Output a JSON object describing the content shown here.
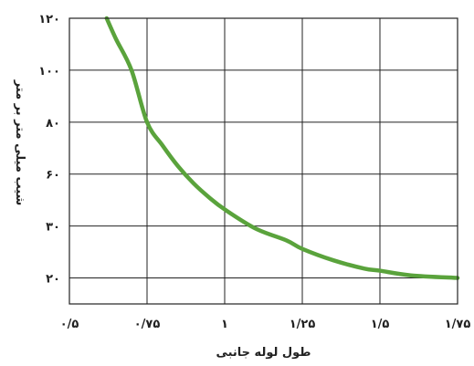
{
  "chart_data": {
    "type": "line",
    "title": "",
    "xlabel": "طول لوله جانبی",
    "ylabel": "شیب میلی متر بر متر",
    "x_ticks": [
      {
        "value": 0.5,
        "label": "۰/۵"
      },
      {
        "value": 0.75,
        "label": "۰/۷۵"
      },
      {
        "value": 1.0,
        "label": "۱"
      },
      {
        "value": 1.25,
        "label": "۱/۲۵"
      },
      {
        "value": 1.5,
        "label": "۱/۵"
      },
      {
        "value": 1.75,
        "label": "۱/۷۵"
      }
    ],
    "y_ticks": [
      {
        "index": 0,
        "label": "۲۰"
      },
      {
        "index": 1,
        "label": "۳۰"
      },
      {
        "index": 2,
        "label": "۶۰"
      },
      {
        "index": 3,
        "label": "۸۰"
      },
      {
        "index": 4,
        "label": "۱۰۰"
      },
      {
        "index": 5,
        "label": "۱۲۰"
      }
    ],
    "xlim": [
      0.5,
      1.75
    ],
    "y_index_range": [
      -0.5,
      5
    ],
    "grid": true,
    "series": [
      {
        "color": "#5aa33c",
        "points": [
          {
            "x": 0.62,
            "y_index": 5.0
          },
          {
            "x": 0.65,
            "y_index": 4.6
          },
          {
            "x": 0.7,
            "y_index": 4.0
          },
          {
            "x": 0.75,
            "y_index": 3.0
          },
          {
            "x": 0.8,
            "y_index": 2.55
          },
          {
            "x": 0.85,
            "y_index": 2.15
          },
          {
            "x": 0.9,
            "y_index": 1.82
          },
          {
            "x": 0.95,
            "y_index": 1.55
          },
          {
            "x": 1.0,
            "y_index": 1.32
          },
          {
            "x": 1.1,
            "y_index": 0.95
          },
          {
            "x": 1.2,
            "y_index": 0.72
          },
          {
            "x": 1.25,
            "y_index": 0.56
          },
          {
            "x": 1.35,
            "y_index": 0.34
          },
          {
            "x": 1.45,
            "y_index": 0.18
          },
          {
            "x": 1.5,
            "y_index": 0.14
          },
          {
            "x": 1.6,
            "y_index": 0.05
          },
          {
            "x": 1.75,
            "y_index": 0.0
          }
        ]
      }
    ]
  }
}
